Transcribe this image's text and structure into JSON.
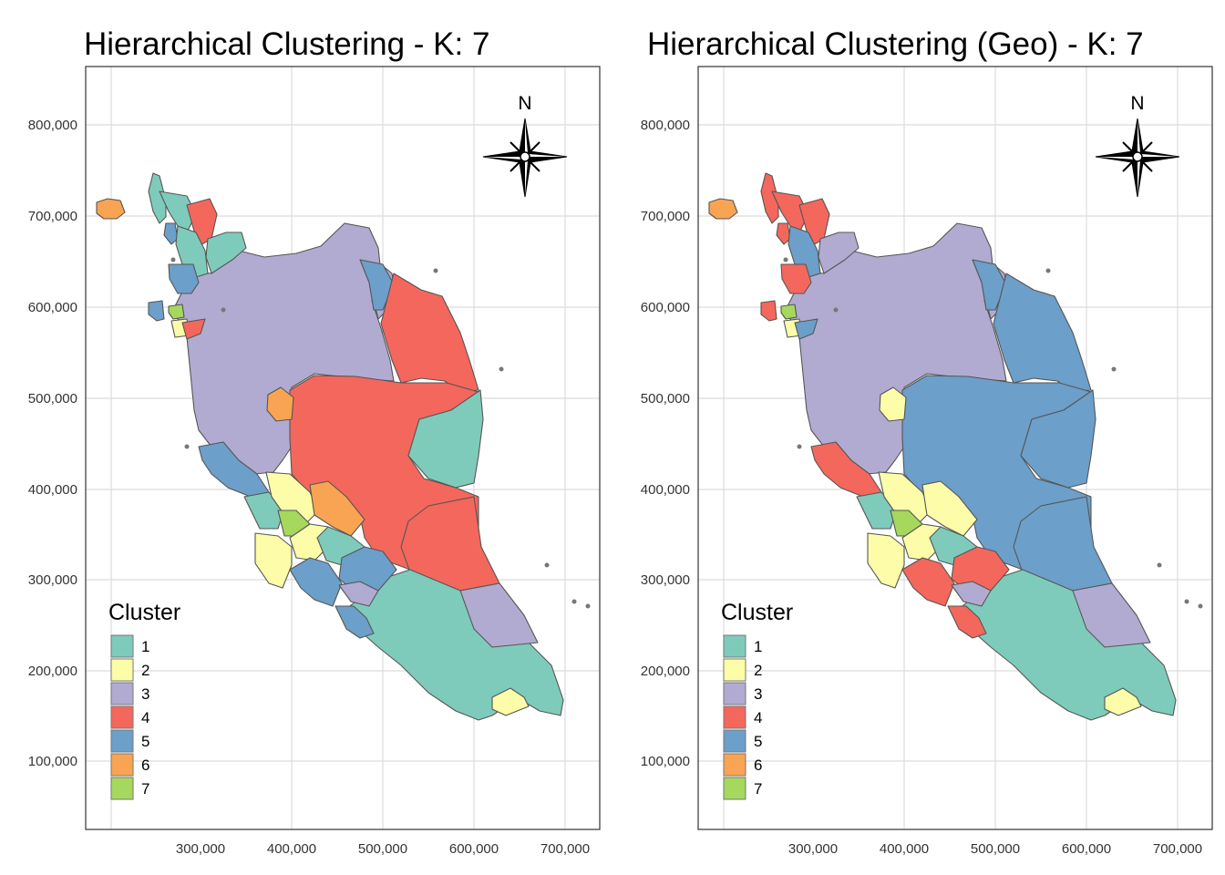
{
  "palette": {
    "1": "#7fcbbb",
    "2": "#fdfda9",
    "3": "#b1abd1",
    "4": "#f4675c",
    "5": "#6c9fc9",
    "6": "#f9a452",
    "7": "#a5d85c"
  },
  "axes": {
    "x_ticks": [
      "300,000",
      "400,000",
      "500,000",
      "600,000",
      "700,000"
    ],
    "y_ticks": [
      "800,000",
      "700,000",
      "600,000",
      "500,000",
      "400,000",
      "300,000",
      "200,000",
      "100,000"
    ]
  },
  "north_arrow_label": "N",
  "legend": {
    "title": "Cluster",
    "items": [
      "1",
      "2",
      "3",
      "4",
      "5",
      "6",
      "7"
    ]
  },
  "panels": [
    {
      "title": "Hierarchical Clustering - K: 7",
      "regions": {
        "langkawi": 6,
        "perlis": 1,
        "kedah_n": 1,
        "kedah_ne": 4,
        "kedah_w": 5,
        "kedah_c": 1,
        "kedah_s": 5,
        "kedah_se": 1,
        "penang_island": 5,
        "penang_main": 7,
        "perak_nw": 2,
        "perak_small": 4,
        "perak": 3,
        "kelantan": 3,
        "kelantan_ne": 5,
        "terengganu": 4,
        "pahang_w_spot": 6,
        "pahang_c": 4,
        "pahang_e": 1,
        "pahang_se": 4,
        "perak_sw": 5,
        "selangor_nw": 1,
        "selangor_n": 2,
        "selangor_ne": 6,
        "kl": 7,
        "selangor_sw": 2,
        "selangor_c": 2,
        "ns_n": 1,
        "ns_w": 5,
        "ns_s": 5,
        "ns_e": 3,
        "melaka": 5,
        "johor": 1,
        "johor_ne": 3,
        "johor_jb": 2
      }
    },
    {
      "title": "Hierarchical Clustering (Geo) - K: 7",
      "regions": {
        "langkawi": 6,
        "perlis": 4,
        "kedah_n": 4,
        "kedah_ne": 4,
        "kedah_w": 4,
        "kedah_c": 5,
        "kedah_s": 4,
        "kedah_se": 3,
        "penang_island": 4,
        "penang_main": 7,
        "perak_nw": 2,
        "perak_small": 5,
        "perak": 3,
        "kelantan": 3,
        "kelantan_ne": 5,
        "terengganu": 5,
        "pahang_w_spot": 2,
        "pahang_c": 5,
        "pahang_e": 5,
        "pahang_se": 5,
        "perak_sw": 4,
        "selangor_nw": 1,
        "selangor_n": 2,
        "selangor_ne": 2,
        "kl": 7,
        "selangor_sw": 2,
        "selangor_c": 2,
        "ns_n": 1,
        "ns_w": 4,
        "ns_s": 4,
        "ns_e": 3,
        "melaka": 4,
        "johor": 1,
        "johor_ne": 3,
        "johor_jb": 2
      }
    }
  ]
}
